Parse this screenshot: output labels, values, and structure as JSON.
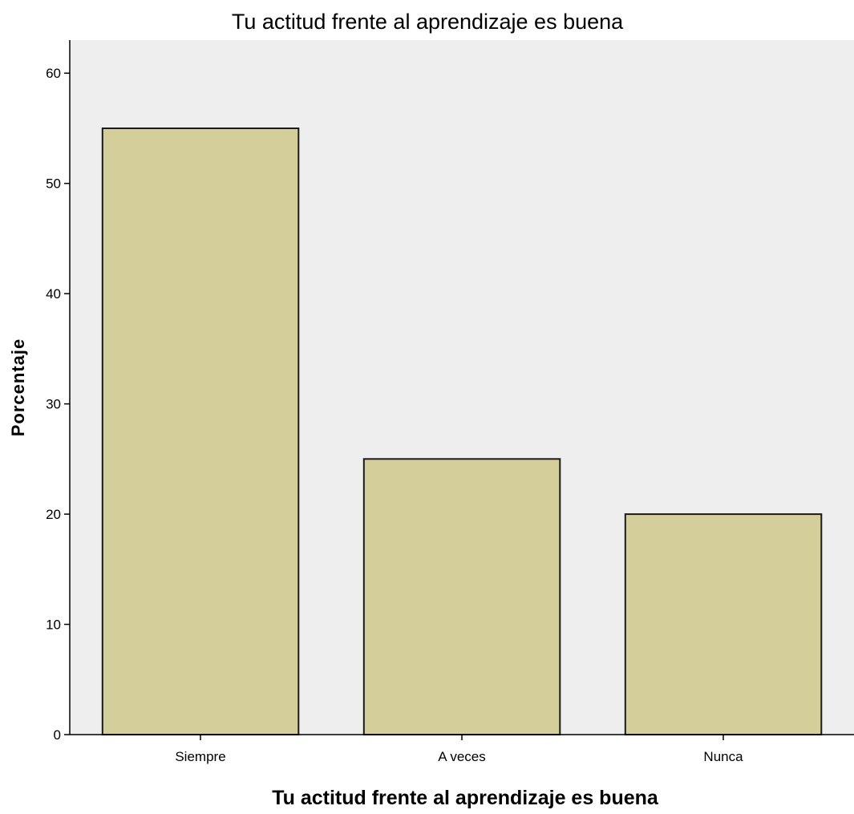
{
  "chart_data": {
    "type": "bar",
    "title": "Tu actitud frente al aprendizaje es buena",
    "xlabel": "Tu actitud frente al aprendizaje es buena",
    "ylabel": "Porcentaje",
    "categories": [
      "Siempre",
      "A veces",
      "Nunca"
    ],
    "values": [
      55,
      25,
      20
    ],
    "ylim": [
      0,
      63
    ],
    "yticks": [
      "0",
      "10",
      "20",
      "30",
      "40",
      "50",
      "60"
    ],
    "grid": false,
    "legend": "none",
    "colors": {
      "bar_fill": "#d4cf9a",
      "bar_stroke": "#1a1a1a",
      "plot_background": "#eeeeee",
      "axis": "#000000"
    }
  }
}
